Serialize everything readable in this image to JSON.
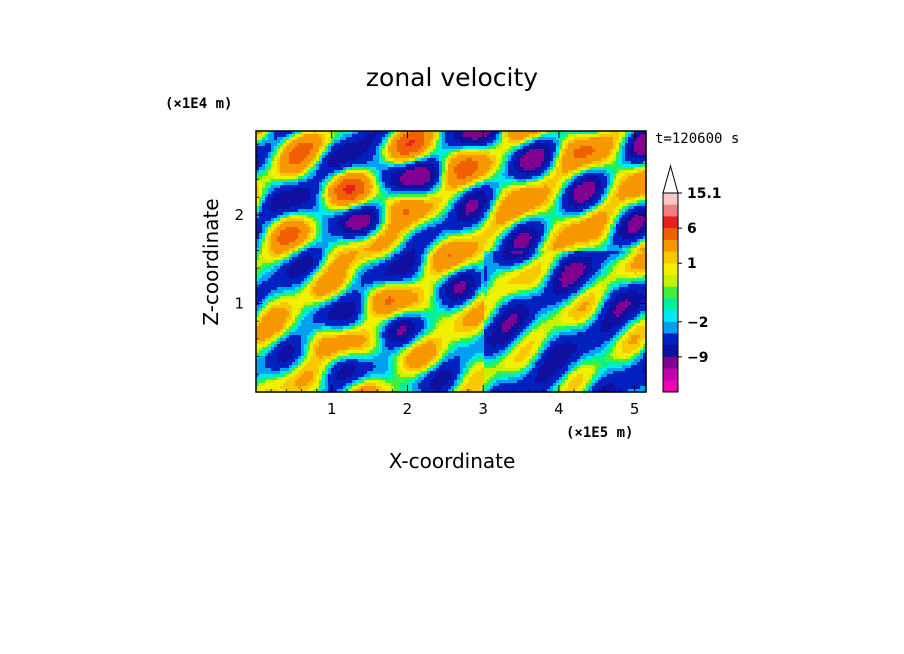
{
  "chart_data": {
    "type": "heatmap",
    "title": "zonal velocity",
    "xlabel": "X-coordinate",
    "ylabel": "Z-coordinate",
    "x_unit": "(×1E5 m)",
    "y_unit": "(×1E4 m)",
    "time_label": "t=120600 s",
    "xlim": [
      0,
      5.15
    ],
    "ylim": [
      0,
      2.95
    ],
    "x_ticks": [
      "1",
      "2",
      "3",
      "4",
      "5"
    ],
    "x_tick_values": [
      1,
      2,
      3,
      4,
      5
    ],
    "y_ticks": [
      "1",
      "2"
    ],
    "y_tick_values": [
      1,
      2
    ],
    "colorbar": {
      "labels": [
        "15.1",
        "6",
        "1",
        "−2",
        "−9"
      ],
      "label_values": [
        15.1,
        6,
        1,
        -2,
        -9
      ],
      "levels_top_to_bottom": [
        15.1,
        12,
        9,
        6,
        3,
        2,
        1,
        0.5,
        0,
        -0.5,
        -1,
        -2,
        -4,
        -6,
        -9,
        -12,
        -15
      ],
      "colors_top_to_bottom": [
        "#f8c8c8",
        "#f08080",
        "#e82020",
        "#f06000",
        "#f89800",
        "#f8c800",
        "#f0f000",
        "#c8f000",
        "#40f040",
        "#00f0a0",
        "#00e8f0",
        "#00a0f0",
        "#0020c0",
        "#1010a0",
        "#800090",
        "#c000b0",
        "#f000b0"
      ],
      "extend": "max"
    },
    "grid": false
  }
}
